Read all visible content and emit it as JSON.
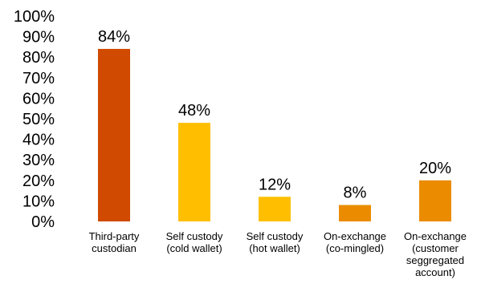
{
  "chart_data": {
    "type": "bar",
    "categories": [
      [
        "Third-party",
        "custodian"
      ],
      [
        "Self custody",
        "(cold wallet)"
      ],
      [
        "Self custody",
        "(hot wallet)"
      ],
      [
        "On-exchange",
        "(co-mingled)"
      ],
      [
        "On-exchange",
        "(customer",
        "seggregated",
        "account)"
      ]
    ],
    "values": [
      84,
      48,
      12,
      8,
      20
    ],
    "data_labels": [
      "84%",
      "48%",
      "12%",
      "8%",
      "20%"
    ],
    "colors": [
      "#D04A02",
      "#FFBF00",
      "#FFBF00",
      "#EB8C00",
      "#EB8C00"
    ],
    "y_ticks": [
      0,
      10,
      20,
      30,
      40,
      50,
      60,
      70,
      80,
      90,
      100
    ],
    "y_tick_labels": [
      "0%",
      "10%",
      "20%",
      "30%",
      "40%",
      "50%",
      "60%",
      "70%",
      "80%",
      "90%",
      "100%"
    ],
    "ylim": [
      0,
      100
    ],
    "grid": false,
    "legend": "none",
    "title": "",
    "xlabel": "",
    "ylabel": ""
  }
}
